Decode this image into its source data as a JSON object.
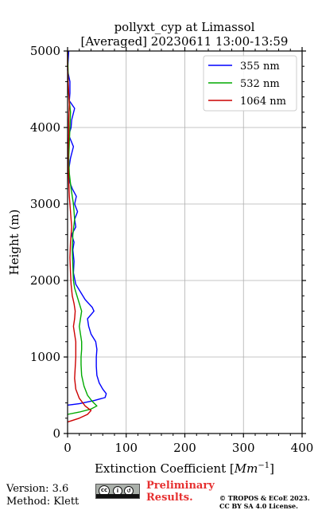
{
  "chart_data": {
    "type": "line",
    "title_line1": "pollyxt_cyp at Limassol",
    "title_line2": "[Averaged] 20230611 13:00-13:59",
    "xlabel": "Extinction Coefficient [Mm⁻¹]",
    "ylabel": "Height (m)",
    "xlim": [
      0,
      400
    ],
    "ylim": [
      0,
      5000
    ],
    "xticks": [
      "0",
      "100",
      "200",
      "300",
      "400"
    ],
    "yticks": [
      "0",
      "1000",
      "2000",
      "3000",
      "4000",
      "5000"
    ],
    "grid": true,
    "legend_position": "top-right",
    "series": [
      {
        "name": "355 nm",
        "color": "#0000ff",
        "points": [
          [
            0,
            370
          ],
          [
            20,
            390
          ],
          [
            45,
            430
          ],
          [
            64,
            470
          ],
          [
            66,
            520
          ],
          [
            60,
            580
          ],
          [
            54,
            660
          ],
          [
            50,
            760
          ],
          [
            49,
            880
          ],
          [
            49,
            1000
          ],
          [
            50,
            1100
          ],
          [
            48,
            1200
          ],
          [
            40,
            1300
          ],
          [
            36,
            1400
          ],
          [
            34,
            1500
          ],
          [
            45,
            1600
          ],
          [
            42,
            1650
          ],
          [
            30,
            1750
          ],
          [
            22,
            1850
          ],
          [
            14,
            1950
          ],
          [
            10,
            2100
          ],
          [
            11,
            2250
          ],
          [
            9,
            2400
          ],
          [
            11,
            2500
          ],
          [
            7,
            2600
          ],
          [
            14,
            2700
          ],
          [
            12,
            2800
          ],
          [
            17,
            2900
          ],
          [
            12,
            3000
          ],
          [
            15,
            3100
          ],
          [
            8,
            3200
          ],
          [
            3,
            3300
          ],
          [
            2,
            3450
          ],
          [
            5,
            3600
          ],
          [
            10,
            3750
          ],
          [
            2,
            3900
          ],
          [
            6,
            4000
          ],
          [
            7,
            4100
          ],
          [
            12,
            4250
          ],
          [
            3,
            4350
          ],
          [
            4,
            4450
          ],
          [
            4,
            4600
          ],
          [
            0,
            4750
          ],
          [
            2,
            5000
          ]
        ]
      },
      {
        "name": "532 nm",
        "color": "#00aa00",
        "points": [
          [
            0,
            250
          ],
          [
            20,
            280
          ],
          [
            40,
            320
          ],
          [
            50,
            360
          ],
          [
            42,
            420
          ],
          [
            34,
            500
          ],
          [
            28,
            620
          ],
          [
            24,
            760
          ],
          [
            23,
            900
          ],
          [
            23,
            1000
          ],
          [
            24,
            1100
          ],
          [
            24,
            1200
          ],
          [
            22,
            1300
          ],
          [
            20,
            1400
          ],
          [
            22,
            1500
          ],
          [
            24,
            1600
          ],
          [
            20,
            1700
          ],
          [
            16,
            1800
          ],
          [
            12,
            1900
          ],
          [
            10,
            2000
          ],
          [
            9,
            2200
          ],
          [
            8,
            2400
          ],
          [
            9,
            2600
          ],
          [
            12,
            2800
          ],
          [
            10,
            3000
          ],
          [
            6,
            3200
          ],
          [
            3,
            3400
          ],
          [
            2,
            3600
          ],
          [
            3,
            3800
          ],
          [
            4,
            4000
          ],
          [
            5,
            4200
          ],
          [
            3,
            4350
          ],
          [
            1,
            4500
          ],
          [
            1,
            4700
          ],
          [
            0,
            5000
          ]
        ]
      },
      {
        "name": "1064 nm",
        "color": "#cc0000",
        "points": [
          [
            0,
            150
          ],
          [
            20,
            200
          ],
          [
            34,
            250
          ],
          [
            40,
            300
          ],
          [
            30,
            360
          ],
          [
            20,
            460
          ],
          [
            14,
            580
          ],
          [
            12,
            720
          ],
          [
            13,
            860
          ],
          [
            14,
            1000
          ],
          [
            14,
            1100
          ],
          [
            14,
            1200
          ],
          [
            12,
            1300
          ],
          [
            10,
            1400
          ],
          [
            12,
            1500
          ],
          [
            13,
            1600
          ],
          [
            11,
            1700
          ],
          [
            8,
            1800
          ],
          [
            6,
            1950
          ],
          [
            5,
            2100
          ],
          [
            4,
            2300
          ],
          [
            5,
            2500
          ],
          [
            7,
            2700
          ],
          [
            5,
            2900
          ],
          [
            3,
            3100
          ],
          [
            2,
            3300
          ],
          [
            1,
            3500
          ],
          [
            1,
            3700
          ],
          [
            2,
            3900
          ],
          [
            2,
            4100
          ],
          [
            3,
            4300
          ],
          [
            2,
            4450
          ],
          [
            1,
            4600
          ],
          [
            0,
            4800
          ],
          [
            0,
            5000
          ]
        ]
      }
    ]
  },
  "footer": {
    "version": "Version: 3.6",
    "method": "Method: Klett",
    "preliminary_line1": "Preliminary",
    "preliminary_line2": "Results.",
    "copyright_line1": "© TROPOS & ECoE 2023.",
    "copyright_line2": "CC BY SA 4.0 License."
  }
}
